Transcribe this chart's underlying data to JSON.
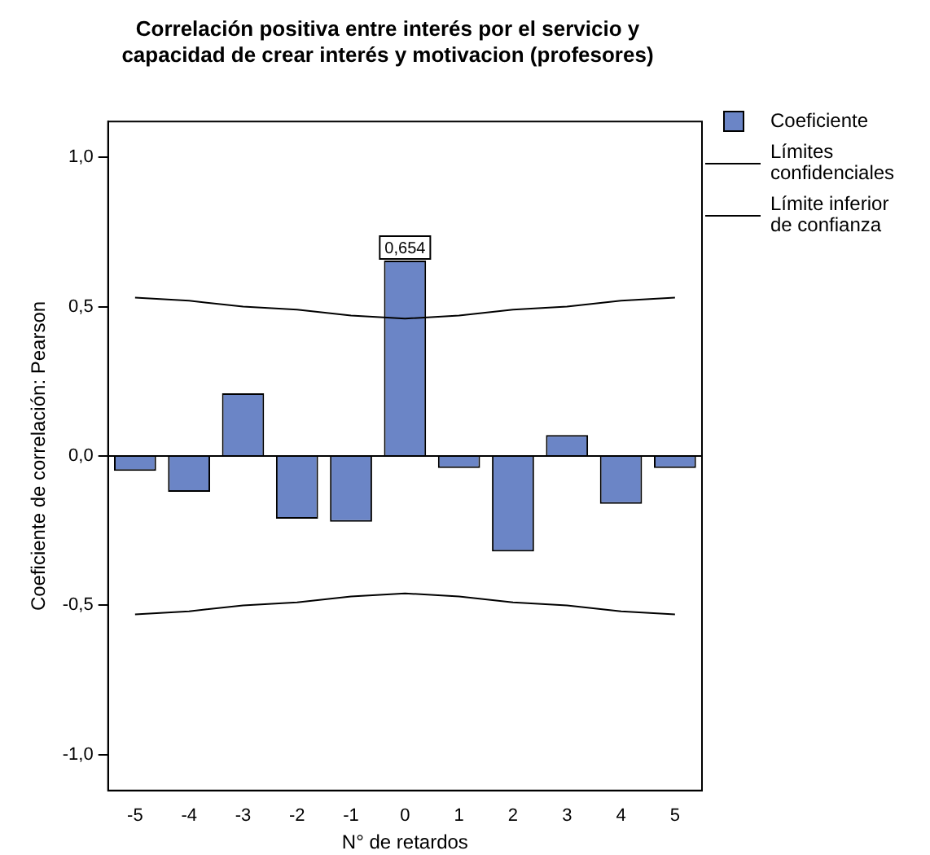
{
  "chart_data": {
    "type": "bar",
    "title": "Correlación positiva entre interés por el servicio y capacidad de crear interés y motivacion (profesores)",
    "xlabel": "N° de retardos",
    "ylabel": "Coeficiente de correlación: Pearson",
    "categories": [
      "-5",
      "-4",
      "-3",
      "-2",
      "-1",
      "0",
      "1",
      "2",
      "3",
      "4",
      "5"
    ],
    "series": [
      {
        "name": "Coeficiente",
        "color": "#6b85c6",
        "values": [
          -0.05,
          -0.12,
          0.21,
          -0.21,
          -0.22,
          0.654,
          -0.04,
          -0.32,
          0.07,
          -0.16,
          -0.04
        ],
        "value_labels": [
          null,
          null,
          null,
          null,
          null,
          "0,654",
          null,
          null,
          null,
          null,
          null
        ]
      },
      {
        "name": "Límites confidenciales",
        "type": "line",
        "color": "#000000",
        "values": [
          0.53,
          0.52,
          0.5,
          0.49,
          0.47,
          0.46,
          0.47,
          0.49,
          0.5,
          0.52,
          0.53
        ]
      },
      {
        "name": "Límite inferior de confianza",
        "type": "line",
        "color": "#000000",
        "values": [
          -0.53,
          -0.52,
          -0.5,
          -0.49,
          -0.47,
          -0.46,
          -0.47,
          -0.49,
          -0.5,
          -0.52,
          -0.53
        ]
      }
    ],
    "ylim": [
      -1.12,
      1.12
    ],
    "yticks": [
      {
        "value": -1,
        "label": "-1,0"
      },
      {
        "value": -0.5,
        "label": "-0,5"
      },
      {
        "value": 0,
        "label": "0,0"
      },
      {
        "value": 0.5,
        "label": "0,5"
      },
      {
        "value": 1,
        "label": "1,0"
      }
    ],
    "ref_lines": [
      {
        "axis": "y",
        "value": 0,
        "color": "#000000"
      }
    ],
    "grid": false,
    "legend": "right",
    "marker": "none",
    "line_style": "solid"
  }
}
